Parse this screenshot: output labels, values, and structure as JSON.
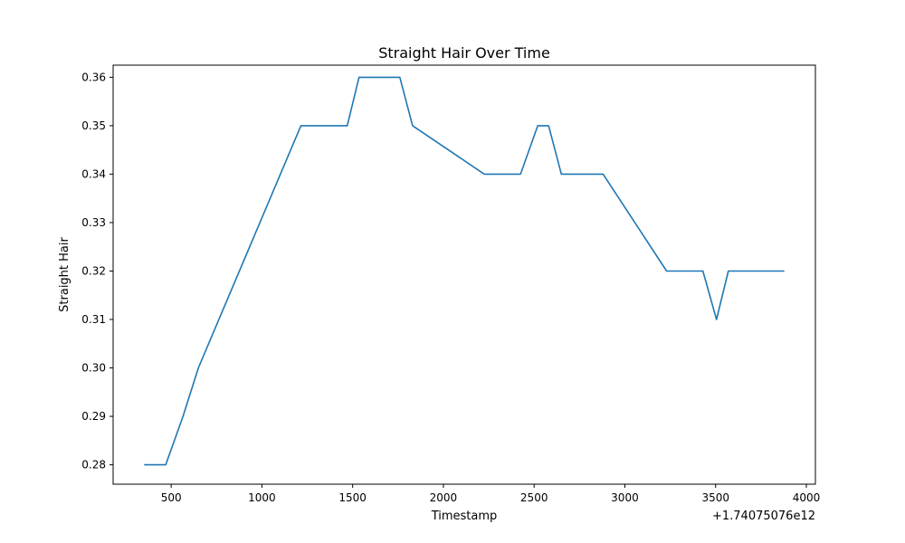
{
  "chart_data": {
    "type": "line",
    "title": "Straight Hair Over Time",
    "xlabel": "Timestamp",
    "ylabel": "Straight Hair",
    "x_offset_label": "+1.74075076e12",
    "xlim": [
      180,
      4050
    ],
    "ylim": [
      0.276,
      0.3625
    ],
    "x_ticks": [
      500,
      1000,
      1500,
      2000,
      2500,
      3000,
      3500,
      4000
    ],
    "x_tick_labels": [
      "500",
      "1000",
      "1500",
      "2000",
      "2500",
      "3000",
      "3500",
      "4000"
    ],
    "y_ticks": [
      0.28,
      0.29,
      0.3,
      0.31,
      0.32,
      0.33,
      0.34,
      0.35,
      0.36
    ],
    "y_tick_labels": [
      "0.28",
      "0.29",
      "0.30",
      "0.31",
      "0.32",
      "0.33",
      "0.34",
      "0.35",
      "0.36"
    ],
    "grid": false,
    "line_color": "#1f77b4",
    "series": [
      {
        "x": [
          355,
          470,
          565,
          650,
          1215,
          1470,
          1535,
          1760,
          1830,
          2225,
          2425,
          2520,
          2580,
          2650,
          2880,
          3230,
          3430,
          3505,
          3570,
          3875
        ],
        "y": [
          0.28,
          0.28,
          0.29,
          0.3,
          0.35,
          0.35,
          0.36,
          0.36,
          0.35,
          0.34,
          0.34,
          0.35,
          0.35,
          0.34,
          0.34,
          0.32,
          0.32,
          0.31,
          0.32,
          0.32
        ]
      }
    ]
  }
}
